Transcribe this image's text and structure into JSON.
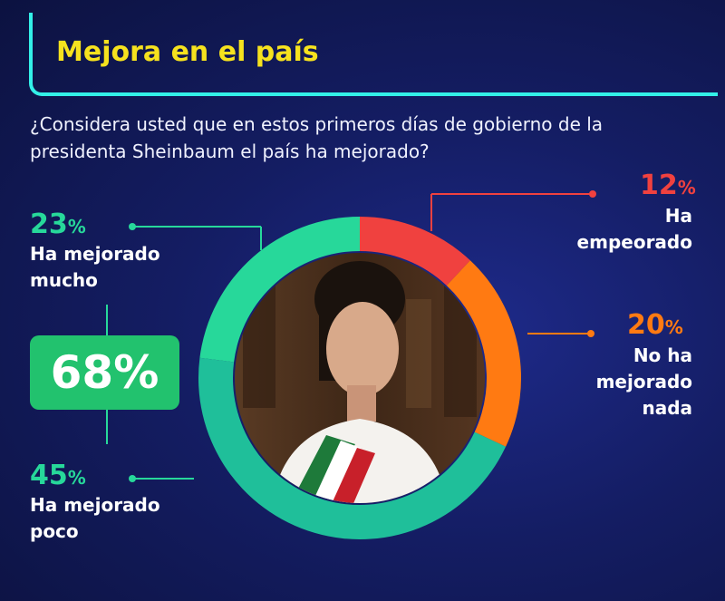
{
  "header": {
    "title": "Mejora en el país",
    "question": "¿Considera usted que en estos primeros días de gobierno de la presidenta Sheinbaum el país ha mejorado?"
  },
  "total": {
    "value": "68",
    "unit": "%"
  },
  "colors": {
    "accent_title": "#f6e21e",
    "frame": "#33f0e8",
    "total_box": "#22c26e"
  },
  "chart_data": {
    "type": "pie",
    "title": "Mejora en el país",
    "categories": [
      "Ha empeorado",
      "No ha mejorado nada",
      "Ha mejorado poco",
      "Ha mejorado mucho"
    ],
    "values": [
      12,
      20,
      45,
      23
    ],
    "unit": "%",
    "colors": [
      "#f0413f",
      "#ff7a12",
      "#1fbf9a",
      "#27d89a"
    ],
    "total_mejorado": 68
  },
  "labels": {
    "empeorado": {
      "num": "12",
      "unit": "%",
      "text": [
        "Ha",
        "empeorado"
      ]
    },
    "nada": {
      "num": "20",
      "unit": "%",
      "text": [
        "No ha",
        "mejorado",
        "nada"
      ]
    },
    "poco": {
      "num": "45",
      "unit": "%",
      "text": [
        "Ha mejorado",
        "poco"
      ]
    },
    "mucho": {
      "num": "23",
      "unit": "%",
      "text": [
        "Ha mejorado",
        "mucho"
      ]
    }
  }
}
